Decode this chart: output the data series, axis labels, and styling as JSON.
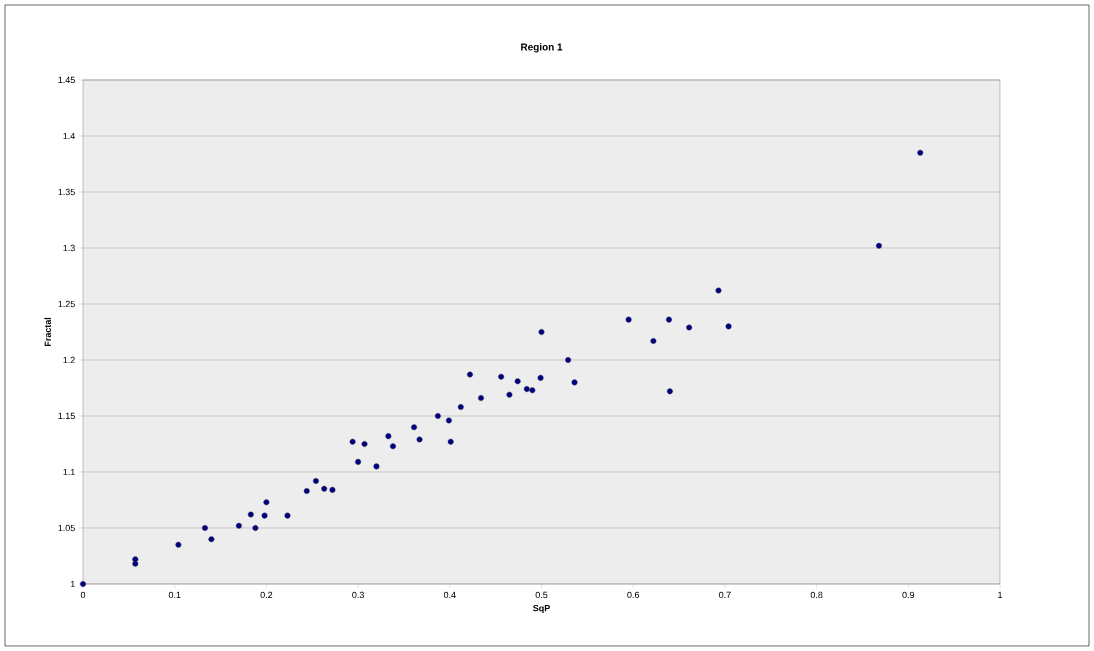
{
  "chart_data": {
    "type": "scatter",
    "title": "Region 1",
    "xlabel": "SqP",
    "ylabel": "Fractal",
    "xlim": [
      0,
      1
    ],
    "xticks": [
      0,
      0.1,
      0.2,
      0.3,
      0.4,
      0.5,
      0.6,
      0.7,
      0.8,
      0.9,
      1
    ],
    "ylim": [
      1,
      1.45
    ],
    "yticks": [
      1,
      1.05,
      1.1,
      1.15,
      1.2,
      1.25,
      1.3,
      1.35,
      1.4,
      1.45
    ],
    "grid": "y",
    "marker": "circle",
    "color": "#000080",
    "x": [
      0,
      0.057,
      0.057,
      0.104,
      0.132,
      0.133,
      0.14,
      0.17,
      0.183,
      0.188,
      0.198,
      0.2,
      0.223,
      0.244,
      0.254,
      0.263,
      0.272,
      0.293,
      0.294,
      0.3,
      0.307,
      0.32,
      0.333,
      0.338,
      0.361,
      0.367,
      0.387,
      0.399,
      0.401,
      0.412,
      0.422,
      0.434,
      0.456,
      0.465,
      0.474,
      0.484,
      0.49,
      0.499,
      0.5,
      0.529,
      0.536,
      0.595,
      0.622,
      0.639,
      0.64,
      0.661,
      0.693,
      0.704,
      0.868,
      0.913
    ],
    "values": [
      1.0,
      1.018,
      1.022,
      1.035,
      null,
      1.05,
      1.04,
      1.052,
      1.062,
      1.05,
      1.061,
      1.073,
      1.061,
      1.083,
      1.092,
      1.085,
      1.084,
      null,
      1.127,
      1.109,
      1.125,
      1.105,
      1.132,
      1.123,
      1.14,
      1.129,
      1.15,
      1.146,
      1.127,
      1.158,
      1.187,
      1.166,
      1.185,
      1.169,
      1.181,
      1.174,
      1.173,
      1.184,
      1.225,
      1.2,
      1.18,
      1.236,
      1.217,
      1.236,
      1.172,
      1.229,
      1.262,
      1.23,
      1.302,
      1.385
    ]
  }
}
